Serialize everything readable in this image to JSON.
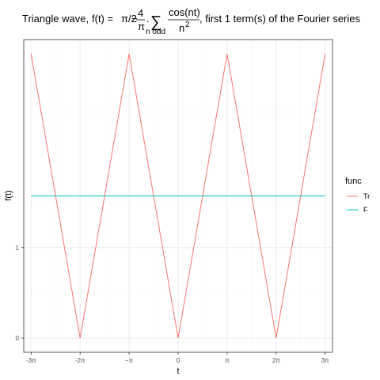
{
  "chart_data": {
    "type": "line",
    "title": {
      "prefix": "Triangle wave, ",
      "eq_lhs": "f(t) = ",
      "pi_over_2": "π/2",
      "minus": "−",
      "frac_num": "4",
      "frac_den": "π",
      "dot": ".",
      "sum": "∑",
      "sum_sub": "n odd",
      "cos_num": "cos(nt)",
      "cos_den": "n",
      "cos_den_exp": "2",
      "suffix": ", first 1 term(s) of the Fourier series"
    },
    "xlabel": "t",
    "ylabel": "f(t)",
    "xlim": [
      -9.896,
      9.896
    ],
    "ylim": [
      -0.157,
      3.299
    ],
    "x_ticks": [
      {
        "value": -9.42478,
        "label": "-3π"
      },
      {
        "value": -6.28319,
        "label": "-2π"
      },
      {
        "value": -3.14159,
        "label": "−π"
      },
      {
        "value": 0,
        "label": "0"
      },
      {
        "value": 3.14159,
        "label": "π"
      },
      {
        "value": 6.28319,
        "label": "2π"
      },
      {
        "value": 9.42478,
        "label": "3π"
      }
    ],
    "y_ticks": [
      {
        "value": 0,
        "label": "0"
      },
      {
        "value": 1,
        "label": "1"
      }
    ],
    "y_minor": [
      0.5,
      1.5,
      2.5
    ],
    "grid": true,
    "legend": {
      "title": "func",
      "placement": "right",
      "entries": [
        {
          "label": "Tr",
          "color": "#F8766D"
        },
        {
          "label": "F",
          "color": "#00BFC4"
        }
      ]
    },
    "series": [
      {
        "name": "Tr",
        "color": "#F8766D",
        "x": [
          -9.42478,
          -6.28319,
          -3.14159,
          0,
          3.14159,
          6.28319,
          9.42478
        ],
        "y": [
          3.14159,
          0,
          3.14159,
          0,
          3.14159,
          0,
          3.14159
        ]
      },
      {
        "name": "F",
        "color": "#00BFC4",
        "x": [
          -9.42478,
          9.42478
        ],
        "y": [
          1.5708,
          1.5708
        ]
      }
    ]
  },
  "colors": {
    "panel_border": "#333333",
    "grid_major": "#ebebeb",
    "grid_minor": "#f5f5f5",
    "tick_text": "#4d4d4d"
  }
}
